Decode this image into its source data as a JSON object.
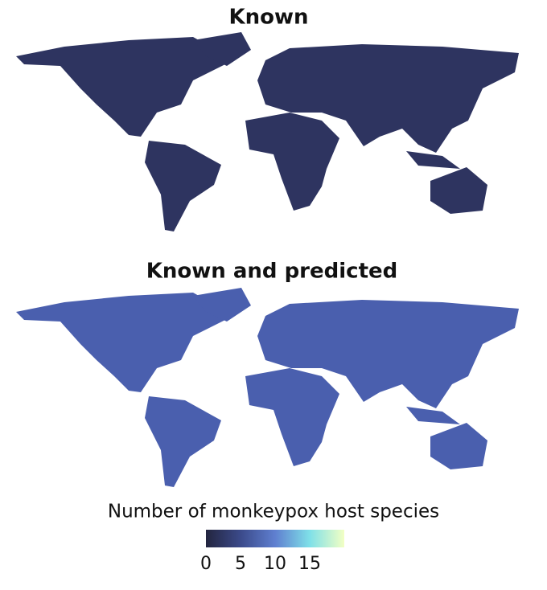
{
  "maps": [
    {
      "title": "Known"
    },
    {
      "title": "Known and predicted"
    }
  ],
  "colorbar": {
    "title": "Number of monkeypox host species",
    "lim": [
      0,
      20
    ],
    "ticks": [
      0,
      5,
      10,
      15
    ],
    "colors": [
      "#23253f",
      "#3b4a8a",
      "#5f7fd0",
      "#7fe0e8",
      "#f2ffc4"
    ]
  }
}
